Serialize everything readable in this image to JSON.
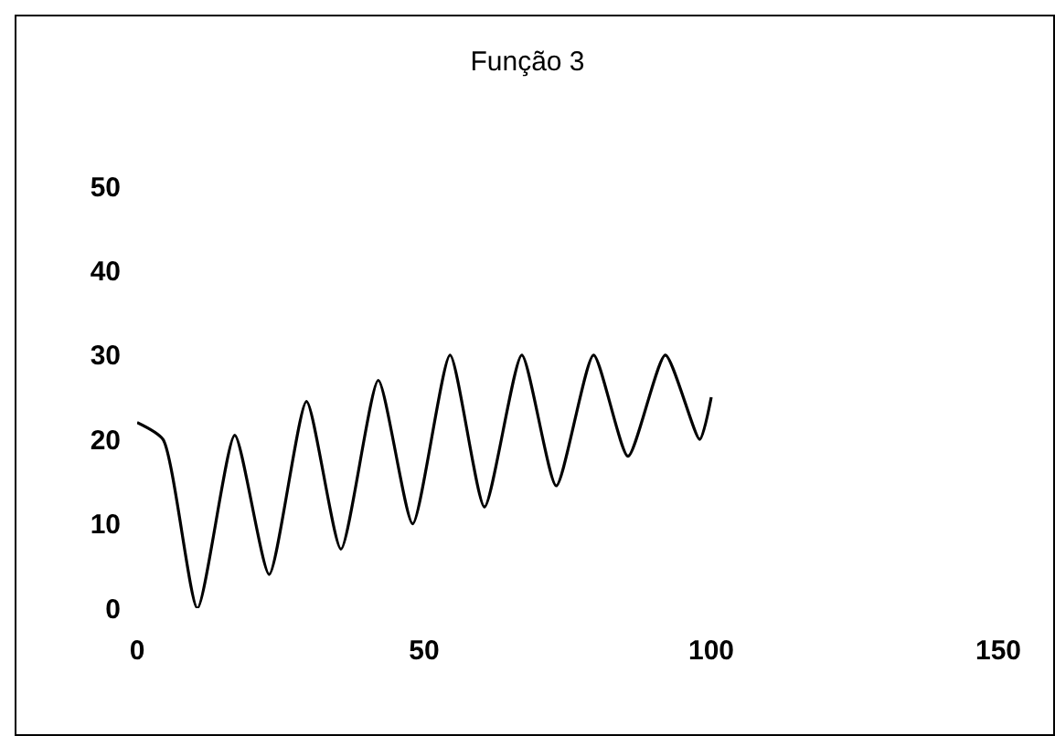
{
  "chart_data": {
    "type": "line",
    "title": "Função 3",
    "x": [
      0,
      4.5,
      10.5,
      17,
      23,
      29.5,
      35.5,
      42,
      48,
      54.5,
      60.5,
      67,
      73,
      79.5,
      85.5,
      92,
      98,
      100
    ],
    "values": [
      22,
      20,
      0,
      20.5,
      4,
      24.5,
      7,
      27,
      10,
      30,
      12,
      30,
      14.5,
      30,
      18,
      30,
      20,
      25
    ],
    "color": "#000000",
    "xlim": [
      0,
      150
    ],
    "xticks": [
      0,
      50,
      100,
      150
    ],
    "ylim": [
      0,
      50
    ],
    "yticks": [
      0,
      10,
      20,
      30,
      40,
      50
    ],
    "grid": false,
    "marker": "none",
    "line_style": "solid"
  }
}
